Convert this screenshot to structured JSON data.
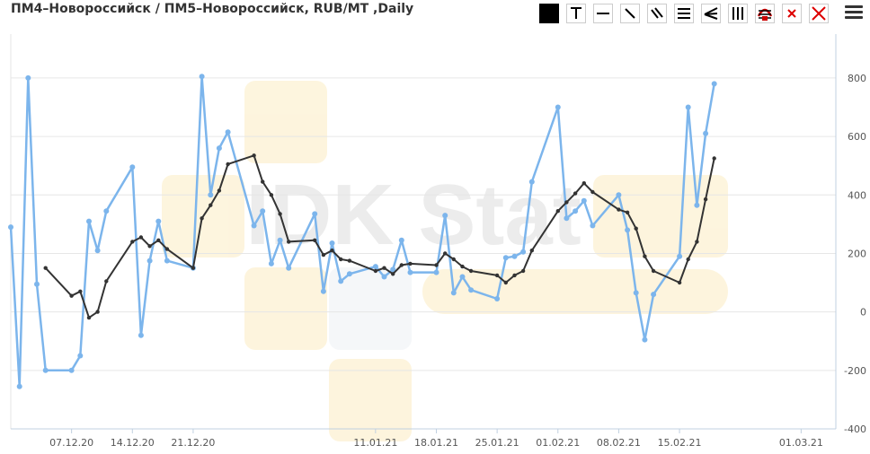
{
  "header": {
    "title": "ПМ4–Новороссийск / ПМ5–Новороссийск, RUB/MT ,Daily"
  },
  "toolbar": [
    {
      "name": "color-swatch-tool",
      "icon": "filled-square-icon"
    },
    {
      "name": "text-tool",
      "icon": "text-t-icon"
    },
    {
      "name": "horizontal-line-tool",
      "icon": "horizontal-line-icon"
    },
    {
      "name": "trend-line-tool",
      "icon": "diagonal-line-icon"
    },
    {
      "name": "parallel-channel-tool",
      "icon": "parallel-diagonal-lines-icon"
    },
    {
      "name": "horizontal-channel-tool",
      "icon": "horizontal-lines-icon"
    },
    {
      "name": "fan-lines-tool",
      "icon": "fan-lines-icon"
    },
    {
      "name": "vertical-lines-tool",
      "icon": "vertical-lines-icon"
    },
    {
      "name": "fibonacci-tool",
      "icon": "fibonacci-arcs-icon"
    },
    {
      "name": "delete-selected-tool",
      "icon": "red-x-small-icon"
    },
    {
      "name": "delete-all-tool",
      "icon": "red-x-large-icon"
    }
  ],
  "watermark": "IDK Stat",
  "colors": {
    "series_price": "#7cb5ec",
    "series_ma": "#333333",
    "grid": "#e6e6e6",
    "axis_line": "#c0d0e0",
    "delete_red": "#dd0000"
  },
  "chart_data": {
    "type": "line",
    "title": "ПМ4–Новороссийск / ПМ5–Новороссийск, RUB/MT ,Daily",
    "yaxis_position": "right",
    "ylim": [
      -400,
      950
    ],
    "yticks": [
      -400,
      -200,
      0,
      200,
      400,
      600,
      800
    ],
    "grid": true,
    "legend": "none",
    "x_range": [
      "2020-11-30",
      "2021-03-05"
    ],
    "xticks": [
      {
        "date": "2020-12-07",
        "label": "07.12.20"
      },
      {
        "date": "2020-12-14",
        "label": "14.12.20"
      },
      {
        "date": "2020-12-21",
        "label": "21.12.20"
      },
      {
        "date": "2021-01-11",
        "label": "11.01.21"
      },
      {
        "date": "2021-01-18",
        "label": "18.01.21"
      },
      {
        "date": "2021-01-25",
        "label": "25.01.21"
      },
      {
        "date": "2021-02-01",
        "label": "01.02.21"
      },
      {
        "date": "2021-02-08",
        "label": "08.02.21"
      },
      {
        "date": "2021-02-15",
        "label": "15.02.21"
      },
      {
        "date": "2021-03-01",
        "label": "01.03.21"
      }
    ],
    "series": [
      {
        "id": "price",
        "color": "#7cb5ec",
        "points": [
          [
            "2020-11-30",
            290
          ],
          [
            "2020-12-01",
            -255
          ],
          [
            "2020-12-02",
            800
          ],
          [
            "2020-12-03",
            95
          ],
          [
            "2020-12-04",
            -200
          ],
          [
            "2020-12-07",
            -200
          ],
          [
            "2020-12-08",
            -150
          ],
          [
            "2020-12-09",
            310
          ],
          [
            "2020-12-10",
            210
          ],
          [
            "2020-12-11",
            345
          ],
          [
            "2020-12-14",
            495
          ],
          [
            "2020-12-15",
            -80
          ],
          [
            "2020-12-16",
            175
          ],
          [
            "2020-12-17",
            310
          ],
          [
            "2020-12-18",
            175
          ],
          [
            "2020-12-21",
            150
          ],
          [
            "2020-12-22",
            805
          ],
          [
            "2020-12-23",
            400
          ],
          [
            "2020-12-24",
            560
          ],
          [
            "2020-12-25",
            615
          ],
          [
            "2020-12-28",
            295
          ],
          [
            "2020-12-29",
            345
          ],
          [
            "2020-12-30",
            165
          ],
          [
            "2020-12-31",
            245
          ],
          [
            "2021-01-01",
            150
          ],
          [
            "2021-01-04",
            335
          ],
          [
            "2021-01-05",
            70
          ],
          [
            "2021-01-06",
            235
          ],
          [
            "2021-01-07",
            105
          ],
          [
            "2021-01-08",
            130
          ],
          [
            "2021-01-11",
            155
          ],
          [
            "2021-01-12",
            120
          ],
          [
            "2021-01-13",
            145
          ],
          [
            "2021-01-14",
            245
          ],
          [
            "2021-01-15",
            135
          ],
          [
            "2021-01-18",
            135
          ],
          [
            "2021-01-19",
            330
          ],
          [
            "2021-01-20",
            65
          ],
          [
            "2021-01-21",
            120
          ],
          [
            "2021-01-22",
            75
          ],
          [
            "2021-01-25",
            45
          ],
          [
            "2021-01-26",
            185
          ],
          [
            "2021-01-27",
            190
          ],
          [
            "2021-01-28",
            205
          ],
          [
            "2021-01-29",
            445
          ],
          [
            "2021-02-01",
            700
          ],
          [
            "2021-02-02",
            320
          ],
          [
            "2021-02-03",
            345
          ],
          [
            "2021-02-04",
            380
          ],
          [
            "2021-02-05",
            295
          ],
          [
            "2021-02-08",
            400
          ],
          [
            "2021-02-09",
            280
          ],
          [
            "2021-02-10",
            65
          ],
          [
            "2021-02-11",
            -95
          ],
          [
            "2021-02-12",
            60
          ],
          [
            "2021-02-15",
            190
          ],
          [
            "2021-02-16",
            700
          ],
          [
            "2021-02-17",
            365
          ],
          [
            "2021-02-18",
            610
          ],
          [
            "2021-02-19",
            780
          ]
        ]
      },
      {
        "id": "moving-average",
        "color": "#333333",
        "points": [
          [
            "2020-12-04",
            150
          ],
          [
            "2020-12-07",
            55
          ],
          [
            "2020-12-08",
            70
          ],
          [
            "2020-12-09",
            -20
          ],
          [
            "2020-12-10",
            0
          ],
          [
            "2020-12-11",
            105
          ],
          [
            "2020-12-14",
            240
          ],
          [
            "2020-12-15",
            255
          ],
          [
            "2020-12-16",
            225
          ],
          [
            "2020-12-17",
            245
          ],
          [
            "2020-12-18",
            215
          ],
          [
            "2020-12-21",
            150
          ],
          [
            "2020-12-22",
            320
          ],
          [
            "2020-12-23",
            365
          ],
          [
            "2020-12-24",
            415
          ],
          [
            "2020-12-25",
            505
          ],
          [
            "2020-12-28",
            535
          ],
          [
            "2020-12-29",
            445
          ],
          [
            "2020-12-30",
            400
          ],
          [
            "2020-12-31",
            335
          ],
          [
            "2021-01-01",
            240
          ],
          [
            "2021-01-04",
            245
          ],
          [
            "2021-01-05",
            195
          ],
          [
            "2021-01-06",
            210
          ],
          [
            "2021-01-07",
            180
          ],
          [
            "2021-01-08",
            175
          ],
          [
            "2021-01-11",
            140
          ],
          [
            "2021-01-12",
            150
          ],
          [
            "2021-01-13",
            130
          ],
          [
            "2021-01-14",
            160
          ],
          [
            "2021-01-15",
            165
          ],
          [
            "2021-01-18",
            160
          ],
          [
            "2021-01-19",
            200
          ],
          [
            "2021-01-20",
            180
          ],
          [
            "2021-01-21",
            155
          ],
          [
            "2021-01-22",
            140
          ],
          [
            "2021-01-25",
            125
          ],
          [
            "2021-01-26",
            100
          ],
          [
            "2021-01-27",
            125
          ],
          [
            "2021-01-28",
            140
          ],
          [
            "2021-01-29",
            210
          ],
          [
            "2021-02-01",
            345
          ],
          [
            "2021-02-02",
            375
          ],
          [
            "2021-02-03",
            405
          ],
          [
            "2021-02-04",
            440
          ],
          [
            "2021-02-05",
            410
          ],
          [
            "2021-02-08",
            350
          ],
          [
            "2021-02-09",
            340
          ],
          [
            "2021-02-10",
            285
          ],
          [
            "2021-02-11",
            190
          ],
          [
            "2021-02-12",
            140
          ],
          [
            "2021-02-15",
            100
          ],
          [
            "2021-02-16",
            180
          ],
          [
            "2021-02-17",
            240
          ],
          [
            "2021-02-18",
            385
          ],
          [
            "2021-02-19",
            525
          ]
        ]
      }
    ]
  }
}
